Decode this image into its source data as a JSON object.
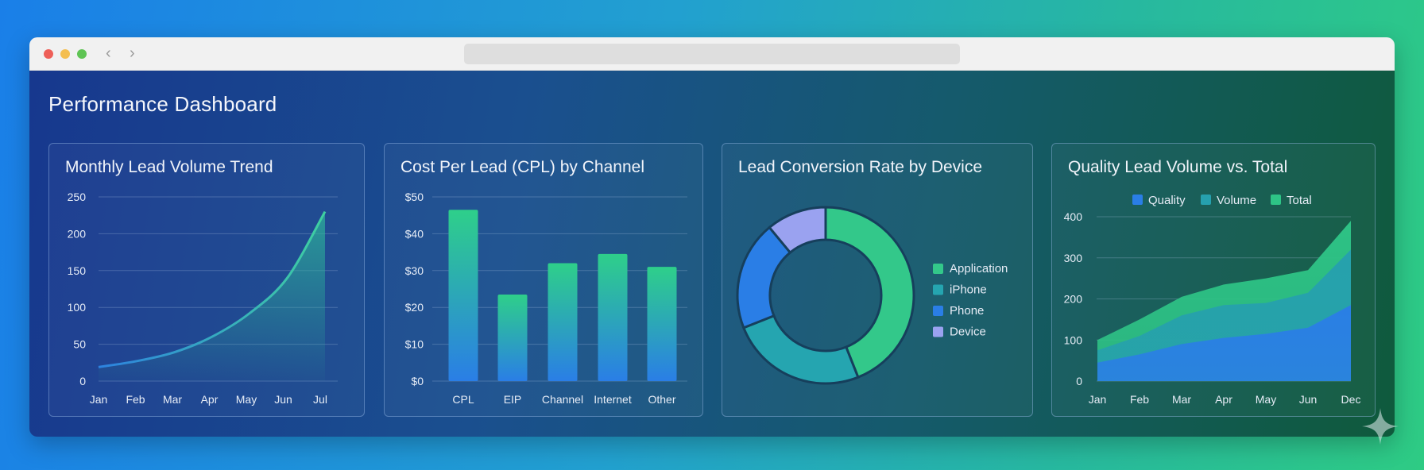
{
  "window": {
    "nav_back_glyph": "‹",
    "nav_forward_glyph": "›",
    "dots": [
      "#ee5f58",
      "#f4be4f",
      "#5fc454"
    ]
  },
  "dashboard": {
    "title": "Performance Dashboard"
  },
  "chart_data": [
    {
      "type": "area",
      "title": "Monthly Lead Volume Trend",
      "categories": [
        "Jan",
        "Feb",
        "Mar",
        "Apr",
        "May",
        "Jun",
        "Jul"
      ],
      "values": [
        19,
        27,
        39,
        60,
        92,
        140,
        230
      ],
      "yticks": [
        "0",
        "50",
        "100",
        "150",
        "200",
        "250"
      ],
      "ylim": [
        0,
        250
      ],
      "line_color": "#3fb8a8",
      "grid": true
    },
    {
      "type": "bar",
      "title": "Cost Per Lead (CPL) by Channel",
      "categories": [
        "CPL",
        "EIP",
        "Channel",
        "Internet",
        "Other"
      ],
      "values": [
        46.5,
        23.5,
        32,
        34.5,
        31
      ],
      "yticks": [
        "$0",
        "$10",
        "$20",
        "$30",
        "$40",
        "$50"
      ],
      "ylim": [
        0,
        50
      ],
      "bar_gradient": [
        "#2ecf8a",
        "#2a7ee6"
      ],
      "grid": true
    },
    {
      "type": "pie",
      "title": "Lead Conversion Rate by Device",
      "categories": [
        "Application",
        "iPhone",
        "Phone",
        "Device"
      ],
      "values": [
        44,
        25,
        20,
        11
      ],
      "colors": [
        "#33c88a",
        "#25a5b0",
        "#2a7ee6",
        "#9aa2f0"
      ],
      "legend": "right"
    },
    {
      "type": "area",
      "title": "Quality Lead Volume vs. Total",
      "categories": [
        "Jan",
        "Feb",
        "Mar",
        "Apr",
        "May",
        "Jun",
        "Dec"
      ],
      "series": [
        {
          "name": "Quality",
          "values": [
            45,
            65,
            90,
            105,
            115,
            130,
            185
          ],
          "color": "#2a7ee6"
        },
        {
          "name": "Volume",
          "values": [
            75,
            110,
            160,
            185,
            190,
            215,
            320
          ],
          "color": "#26a0ae"
        },
        {
          "name": "Total",
          "values": [
            100,
            150,
            205,
            235,
            250,
            270,
            390
          ],
          "color": "#2ec486"
        }
      ],
      "yticks": [
        "0",
        "100",
        "200",
        "300",
        "400"
      ],
      "ylim": [
        0,
        400
      ],
      "legend": "top",
      "grid": true
    }
  ]
}
